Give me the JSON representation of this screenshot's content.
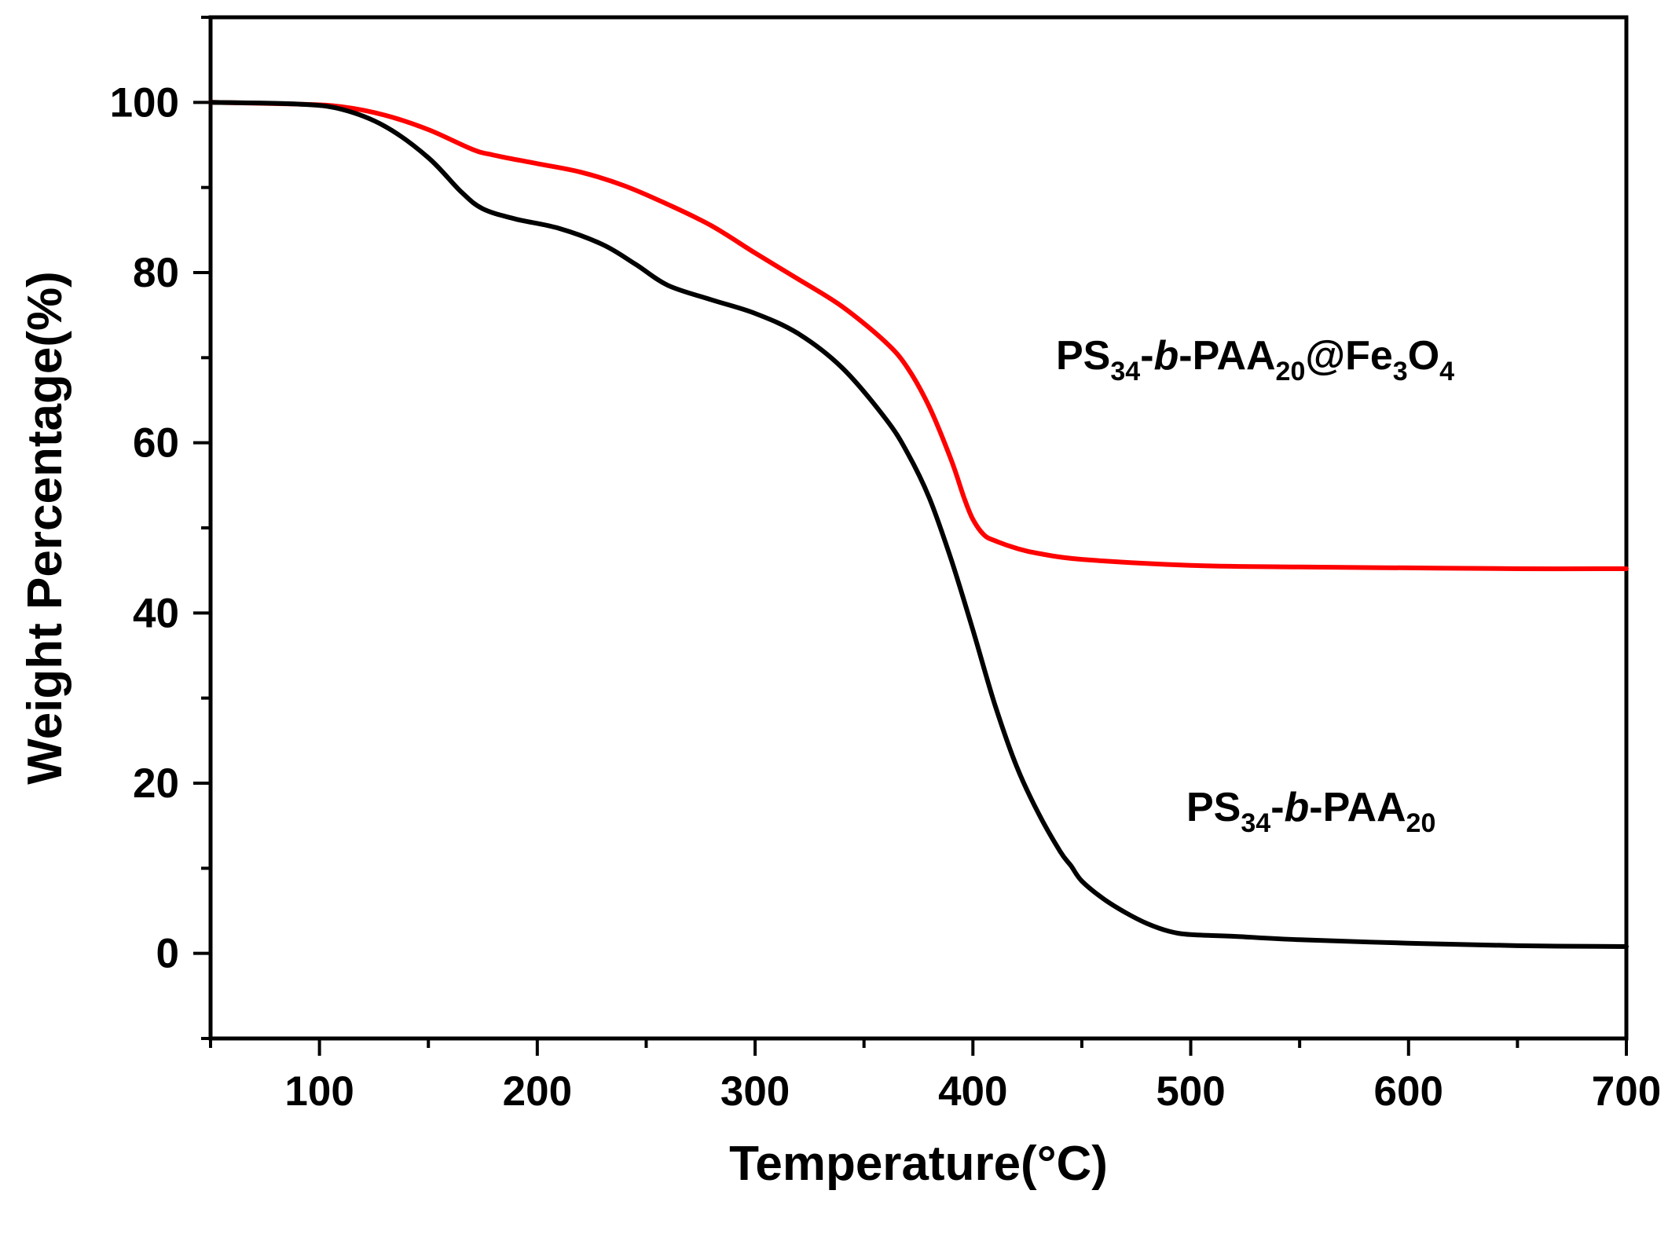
{
  "chart_data": {
    "type": "line",
    "xlabel": "Temperature(°C)",
    "ylabel": "Weight Percentage(%)",
    "xlim": [
      50,
      700
    ],
    "ylim": [
      -10,
      110
    ],
    "x_ticks": [
      100,
      200,
      300,
      400,
      500,
      600,
      700
    ],
    "y_ticks": [
      0,
      20,
      40,
      60,
      80,
      100
    ],
    "grid": false,
    "legend": "none",
    "series": [
      {
        "label_parts": [
          {
            "text": "PS",
            "style": "normal"
          },
          {
            "text": "34",
            "style": "sub"
          },
          {
            "text": "-",
            "style": "normal"
          },
          {
            "text": "b",
            "style": "italic"
          },
          {
            "text": "-PAA",
            "style": "normal"
          },
          {
            "text": "20",
            "style": "sub"
          },
          {
            "text": "@Fe",
            "style": "normal"
          },
          {
            "text": "3",
            "style": "sub"
          },
          {
            "text": "O",
            "style": "normal"
          },
          {
            "text": "4",
            "style": "sub"
          }
        ],
        "color": "#ff0000",
        "x": [
          50,
          90,
          110,
          130,
          150,
          170,
          180,
          200,
          220,
          240,
          260,
          280,
          300,
          320,
          340,
          360,
          370,
          380,
          390,
          396,
          400,
          405,
          410,
          420,
          430,
          450,
          500,
          550,
          600,
          650,
          700
        ],
        "y": [
          100,
          99.8,
          99.5,
          98.5,
          96.8,
          94.5,
          93.8,
          92.8,
          91.8,
          90.2,
          88.0,
          85.5,
          82.3,
          79.2,
          76.0,
          71.8,
          68.8,
          64.2,
          58.0,
          53.5,
          51.0,
          49.2,
          48.5,
          47.6,
          47.0,
          46.3,
          45.6,
          45.4,
          45.3,
          45.2,
          45.2
        ]
      },
      {
        "label_parts": [
          {
            "text": "PS",
            "style": "normal"
          },
          {
            "text": "34",
            "style": "sub"
          },
          {
            "text": "-",
            "style": "normal"
          },
          {
            "text": "b",
            "style": "italic"
          },
          {
            "text": "-PAA",
            "style": "normal"
          },
          {
            "text": "20",
            "style": "sub"
          }
        ],
        "color": "#000000",
        "x": [
          50,
          90,
          110,
          130,
          150,
          165,
          175,
          190,
          210,
          230,
          245,
          260,
          280,
          300,
          320,
          340,
          360,
          370,
          380,
          390,
          400,
          410,
          420,
          430,
          440,
          445,
          450,
          460,
          470,
          480,
          490,
          500,
          520,
          550,
          600,
          650,
          700
        ],
        "y": [
          100,
          99.8,
          99.2,
          97.2,
          93.5,
          89.5,
          87.5,
          86.3,
          85.2,
          83.3,
          81.0,
          78.5,
          76.8,
          75.2,
          72.8,
          68.8,
          62.8,
          58.8,
          53.5,
          46.3,
          38.0,
          29.3,
          22.0,
          16.5,
          12.0,
          10.3,
          8.5,
          6.4,
          4.8,
          3.5,
          2.6,
          2.2,
          2.0,
          1.6,
          1.2,
          0.9,
          0.8
        ]
      }
    ]
  }
}
